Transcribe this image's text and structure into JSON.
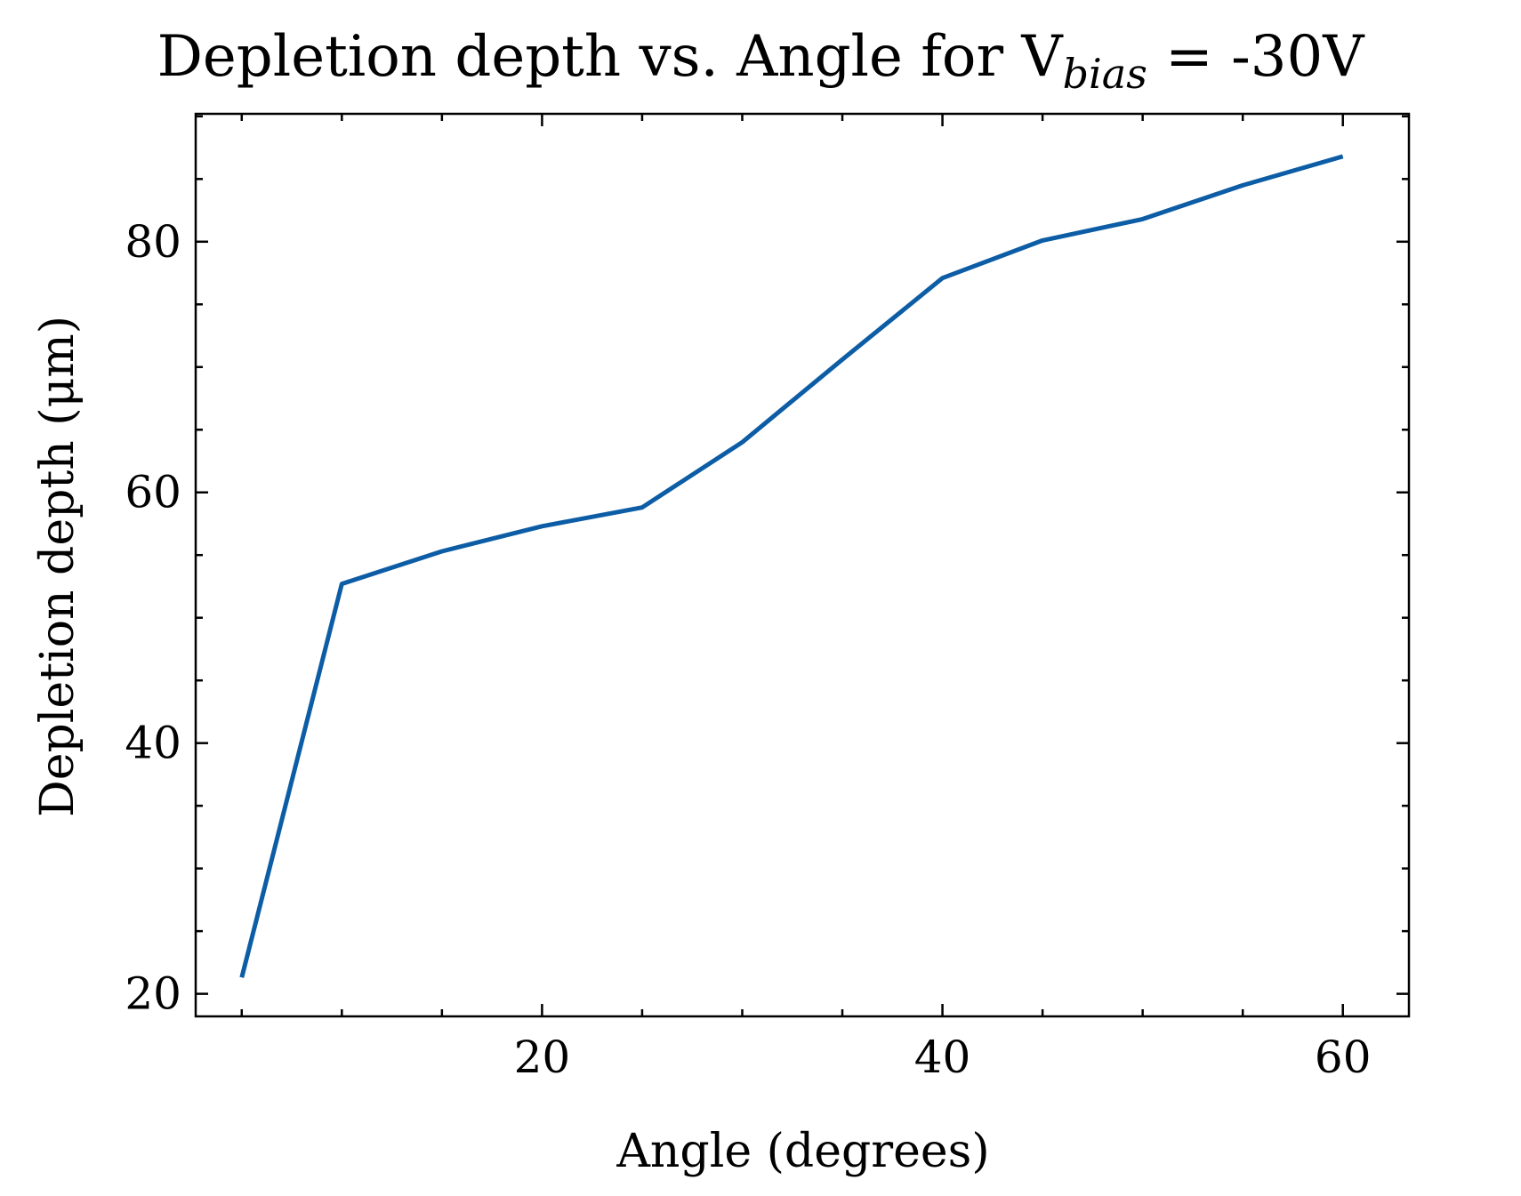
{
  "chart_data": {
    "type": "line",
    "title": "Depletion depth vs. Angle for V",
    "title_subscript": "bias",
    "title_suffix": " = -30V",
    "xlabel": "Angle (degrees)",
    "ylabel": "Depletion depth (μm)",
    "xlim": [
      2.7,
      63.3
    ],
    "ylim": [
      18.2,
      90.2
    ],
    "xticks": [
      20,
      40,
      60
    ],
    "xtick_labels": [
      "20",
      "40",
      "60"
    ],
    "yticks": [
      20,
      40,
      60,
      80
    ],
    "ytick_labels": [
      "20",
      "40",
      "60",
      "80"
    ],
    "x_minor_step": 5,
    "y_minor_step": 5,
    "grid": false,
    "series": [
      {
        "color": "#0C5DA5",
        "x": [
          5,
          10,
          15,
          20,
          25,
          30,
          35,
          40,
          45,
          50,
          55,
          60
        ],
        "y": [
          21.3,
          52.7,
          55.3,
          57.3,
          58.8,
          64.0,
          70.6,
          77.1,
          80.1,
          81.8,
          84.5,
          86.8
        ]
      }
    ]
  }
}
